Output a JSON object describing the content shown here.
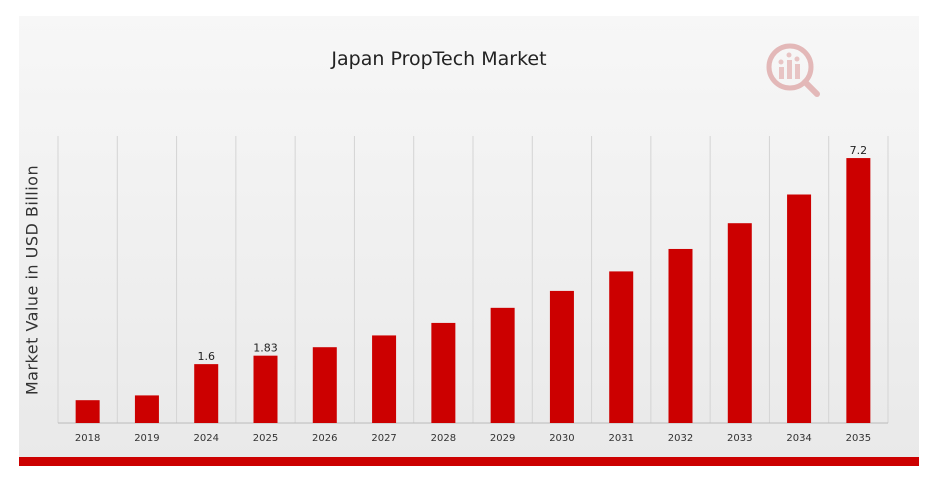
{
  "chart_data": {
    "type": "bar",
    "title": "Japan PropTech Market",
    "ylabel": "Market Value in USD Billion",
    "xlabel": "",
    "categories": [
      "2018",
      "2019",
      "2024",
      "2025",
      "2026",
      "2027",
      "2028",
      "2029",
      "2030",
      "2031",
      "2032",
      "2033",
      "2034",
      "2035"
    ],
    "values": [
      0.62,
      0.75,
      1.6,
      1.83,
      2.06,
      2.38,
      2.72,
      3.13,
      3.59,
      4.12,
      4.73,
      5.43,
      6.21,
      7.2
    ],
    "data_labels": {
      "2024": "1.6",
      "2025": "1.83",
      "2035": "7.2"
    },
    "ylim": [
      0,
      7.8
    ],
    "bar_color": "#cc0000",
    "grid": "vertical",
    "legend": "none"
  },
  "colors": {
    "accent": "#cc0000",
    "background": "#efefef"
  },
  "icons": {
    "logo": "market-research-logo-icon"
  }
}
